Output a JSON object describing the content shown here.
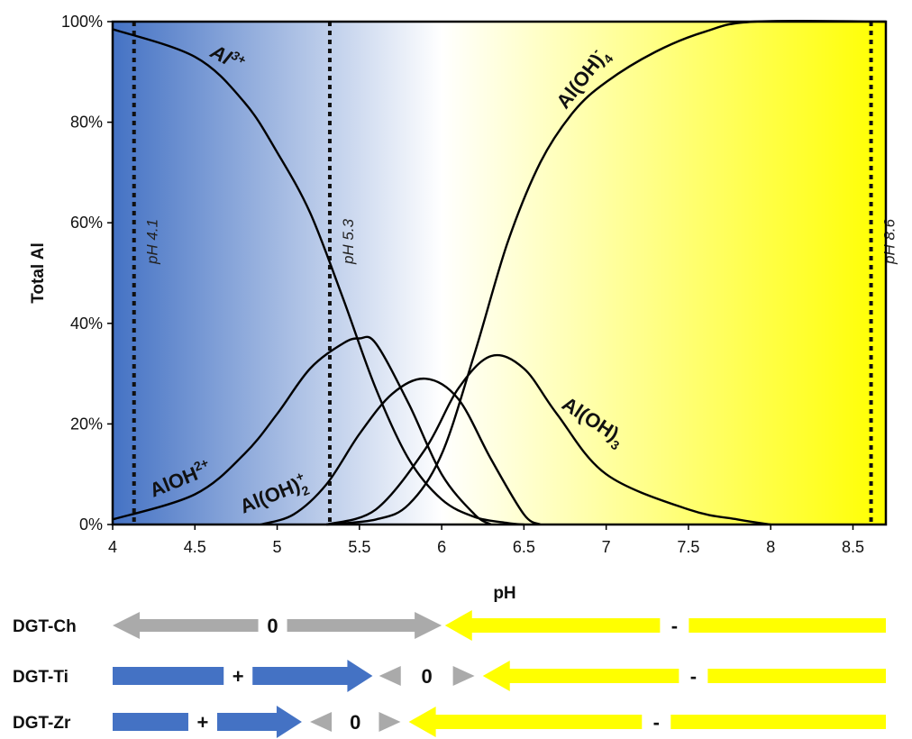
{
  "chart_data": {
    "type": "line",
    "xlabel": "pH",
    "ylabel": "Total Al",
    "xlim": [
      4,
      8.7
    ],
    "ylim": [
      0,
      100
    ],
    "x_ticks": [
      "4",
      "4.5",
      "5",
      "5.5",
      "6",
      "6.5",
      "7",
      "7.5",
      "8",
      "8.5"
    ],
    "y_ticks": [
      "0%",
      "20%",
      "40%",
      "60%",
      "80%",
      "100%"
    ],
    "background_gradient": {
      "from_color": "#4472c4",
      "mid_color": "#ffffff",
      "to_color": "#ffff00",
      "mid_ph": 6.0
    },
    "series": [
      {
        "name": "Al3+",
        "x": [
          4.0,
          4.5,
          4.8,
          5.0,
          5.2,
          5.4,
          5.6,
          5.8,
          6.0,
          6.2,
          6.4,
          6.5
        ],
        "y": [
          98.5,
          93,
          84,
          74,
          62,
          45,
          27,
          13,
          5,
          1.5,
          0.3,
          0
        ]
      },
      {
        "name": "AlOH2+",
        "x": [
          4.0,
          4.5,
          4.8,
          5.0,
          5.2,
          5.4,
          5.5,
          5.6,
          5.8,
          6.0,
          6.2,
          6.3
        ],
        "y": [
          1,
          6,
          14,
          22,
          31,
          36,
          37,
          36,
          24,
          10,
          2,
          0
        ]
      },
      {
        "name": "Al(OH)2+",
        "x": [
          4.9,
          5.1,
          5.3,
          5.5,
          5.7,
          5.9,
          6.1,
          6.3,
          6.5,
          6.6
        ],
        "y": [
          0,
          2,
          8,
          18,
          26,
          29,
          25,
          13,
          2,
          0
        ]
      },
      {
        "name": "Al(OH)3",
        "x": [
          5.3,
          5.6,
          5.9,
          6.1,
          6.3,
          6.5,
          6.7,
          7.0,
          7.5,
          7.8,
          8.0
        ],
        "y": [
          0,
          3,
          15,
          27,
          33.5,
          31,
          22,
          10,
          3,
          1,
          0
        ]
      },
      {
        "name": "Al(OH)4-",
        "x": [
          5.3,
          5.6,
          5.8,
          6.0,
          6.2,
          6.4,
          6.6,
          6.8,
          7.0,
          7.3,
          7.6,
          7.9,
          8.7
        ],
        "y": [
          0,
          1,
          4,
          14,
          34,
          56,
          72,
          82,
          88,
          94,
          98,
          100,
          100
        ]
      }
    ],
    "vlines": [
      {
        "x": 4.13,
        "label": "pH 4.1"
      },
      {
        "x": 5.32,
        "label": "pH 5.3"
      },
      {
        "x": 8.61,
        "label": "pH 8.6"
      }
    ],
    "curve_labels": {
      "al3": {
        "base": "Al",
        "sup": "3+"
      },
      "aloh2": {
        "base": "AlOH",
        "sup": "2+"
      },
      "aloh2p": {
        "base": "Al(OH)",
        "sub": "2",
        "sup": "+"
      },
      "aloh3": {
        "base": "Al(OH)",
        "sub": "3"
      },
      "aloh4": {
        "base": "Al(OH)",
        "sub": "4",
        "sup": "-"
      }
    },
    "dgt_rows": [
      {
        "label": "DGT-Ch",
        "segments": [
          {
            "type": "double-arrow",
            "from": 4.0,
            "to": 6.0,
            "color": "#aaaaaa",
            "sign": "0"
          },
          {
            "type": "arrow-left",
            "from": 6.02,
            "to": 8.7,
            "color": "#ffff00",
            "sign": "-"
          }
        ]
      },
      {
        "label": "DGT-Ti",
        "segments": [
          {
            "type": "arrow-right",
            "from": 4.0,
            "to": 5.58,
            "color": "#4472c4",
            "sign": "+"
          },
          {
            "type": "small-double",
            "from": 5.62,
            "to": 6.2,
            "color": "#aaaaaa",
            "sign": "0"
          },
          {
            "type": "arrow-left",
            "from": 6.25,
            "to": 8.7,
            "color": "#ffff00",
            "sign": "-"
          }
        ]
      },
      {
        "label": "DGT-Zr",
        "segments": [
          {
            "type": "arrow-right",
            "from": 4.0,
            "to": 5.15,
            "color": "#4472c4",
            "sign": "+"
          },
          {
            "type": "small-double",
            "from": 5.2,
            "to": 5.75,
            "color": "#aaaaaa",
            "sign": "0"
          },
          {
            "type": "arrow-left",
            "from": 5.8,
            "to": 8.7,
            "color": "#ffff00",
            "sign": "-"
          }
        ]
      }
    ]
  }
}
